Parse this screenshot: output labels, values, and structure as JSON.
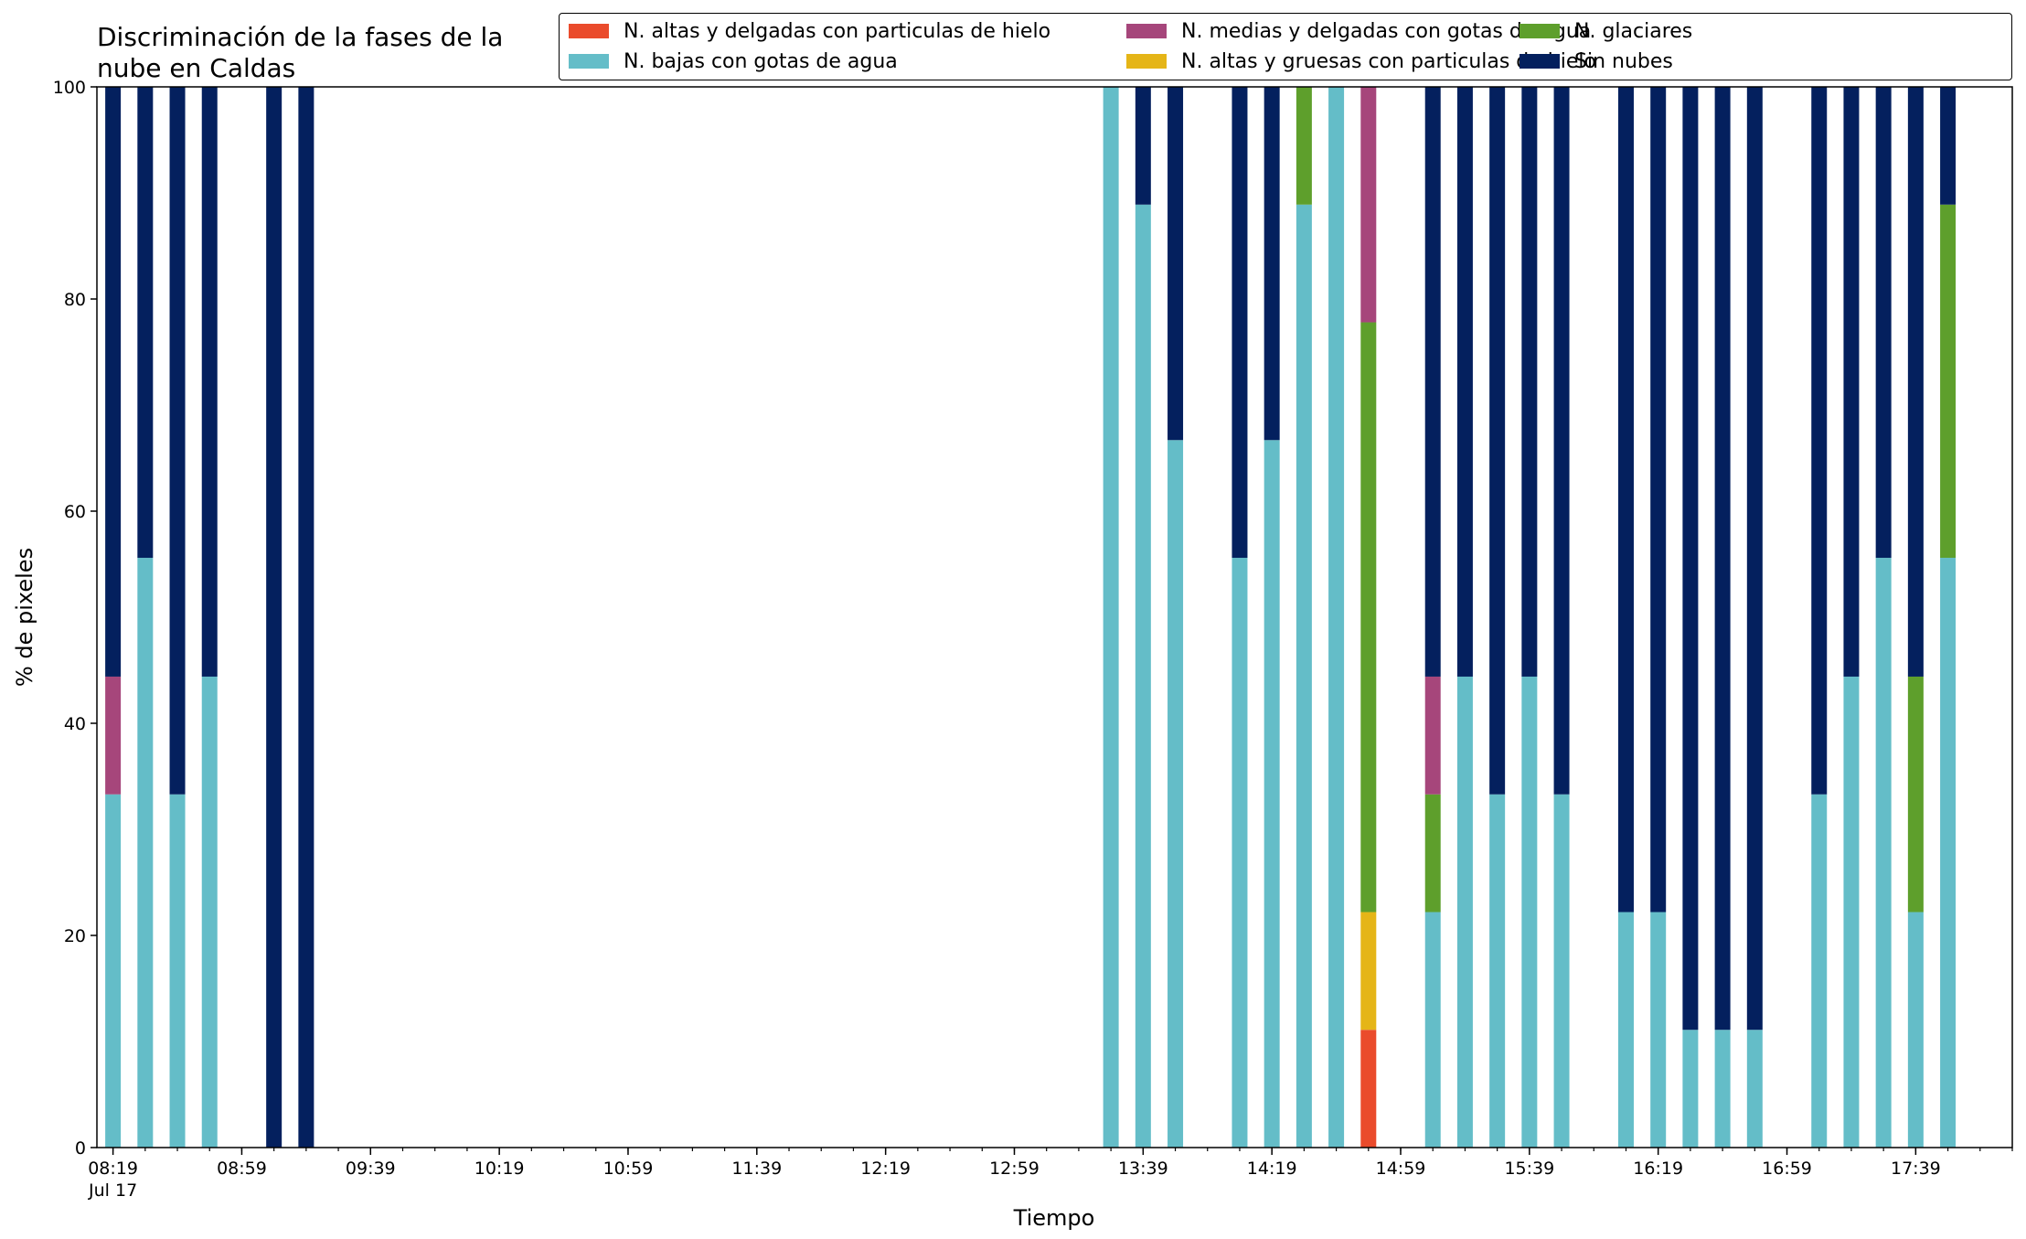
{
  "chart_data": {
    "type": "bar",
    "stacked": true,
    "title": "Discriminación de la fases de la\nnube en Caldas",
    "xlabel": "Tiempo",
    "ylabel": "% de pixeles",
    "ylim": [
      0,
      100
    ],
    "yticks": [
      0,
      20,
      40,
      60,
      80,
      100
    ],
    "xticks": [
      {
        "time": "08:19",
        "sub": "Jul 17"
      },
      {
        "time": "08:59"
      },
      {
        "time": "09:39"
      },
      {
        "time": "10:19"
      },
      {
        "time": "10:59"
      },
      {
        "time": "11:39"
      },
      {
        "time": "12:19"
      },
      {
        "time": "12:59"
      },
      {
        "time": "13:39"
      },
      {
        "time": "14:19"
      },
      {
        "time": "14:59"
      },
      {
        "time": "15:39"
      },
      {
        "time": "16:19"
      },
      {
        "time": "16:59"
      },
      {
        "time": "17:39"
      }
    ],
    "x_range": [
      "08:14",
      "18:09"
    ],
    "legend_position": "top-right",
    "series": [
      {
        "name": "N. altas y delgadas con particulas de hielo",
        "color": "#EA4B2C"
      },
      {
        "name": "N. altas y gruesas con particulas de hielo",
        "color": "#E5B517"
      },
      {
        "name": "N. bajas con gotas de agua",
        "color": "#64BDC8"
      },
      {
        "name": "N. glaciares",
        "color": "#5E9F2C"
      },
      {
        "name": "N. medias y delgadas con gotas de agua",
        "color": "#A6467B"
      },
      {
        "name": "Sin nubes",
        "color": "#04205E"
      }
    ],
    "legend_order": [
      0,
      2,
      4,
      1,
      3,
      5
    ],
    "bars": [
      {
        "time": "08:19",
        "values": [
          0,
          0,
          33.3,
          0,
          11.1,
          55.6
        ]
      },
      {
        "time": "08:29",
        "values": [
          0,
          0,
          55.6,
          0,
          0,
          44.4
        ]
      },
      {
        "time": "08:39",
        "values": [
          0,
          0,
          33.3,
          0,
          0,
          66.7
        ]
      },
      {
        "time": "08:49",
        "values": [
          0,
          0,
          44.4,
          0,
          0,
          55.6
        ]
      },
      {
        "time": "09:09",
        "values": [
          0,
          0,
          0,
          0,
          0,
          100
        ]
      },
      {
        "time": "09:19",
        "values": [
          0,
          0,
          0,
          0,
          0,
          100
        ]
      },
      {
        "time": "13:29",
        "values": [
          0,
          0,
          100,
          0,
          0,
          0
        ]
      },
      {
        "time": "13:39",
        "values": [
          0,
          0,
          88.9,
          0,
          0,
          11.1
        ]
      },
      {
        "time": "13:49",
        "values": [
          0,
          0,
          66.7,
          0,
          0,
          33.3
        ]
      },
      {
        "time": "14:09",
        "values": [
          0,
          0,
          55.6,
          0,
          0,
          44.4
        ]
      },
      {
        "time": "14:19",
        "values": [
          0,
          0,
          66.7,
          0,
          0,
          33.3
        ]
      },
      {
        "time": "14:29",
        "values": [
          0,
          0,
          88.9,
          11.1,
          0,
          0
        ]
      },
      {
        "time": "14:39",
        "values": [
          0,
          0,
          100,
          0,
          0,
          0
        ]
      },
      {
        "time": "14:49",
        "values": [
          11.1,
          11.1,
          0,
          55.6,
          22.2,
          0
        ]
      },
      {
        "time": "15:09",
        "values": [
          0,
          0,
          22.2,
          11.1,
          11.1,
          55.6
        ]
      },
      {
        "time": "15:19",
        "values": [
          0,
          0,
          44.4,
          0,
          0,
          55.6
        ]
      },
      {
        "time": "15:29",
        "values": [
          0,
          0,
          33.3,
          0,
          0,
          66.7
        ]
      },
      {
        "time": "15:39",
        "values": [
          0,
          0,
          44.4,
          0,
          0,
          55.6
        ]
      },
      {
        "time": "15:49",
        "values": [
          0,
          0,
          33.3,
          0,
          0,
          66.7
        ]
      },
      {
        "time": "16:09",
        "values": [
          0,
          0,
          22.2,
          0,
          0,
          77.8
        ]
      },
      {
        "time": "16:19",
        "values": [
          0,
          0,
          22.2,
          0,
          0,
          77.8
        ]
      },
      {
        "time": "16:29",
        "values": [
          0,
          0,
          11.1,
          0,
          0,
          88.9
        ]
      },
      {
        "time": "16:39",
        "values": [
          0,
          0,
          11.1,
          0,
          0,
          88.9
        ]
      },
      {
        "time": "16:49",
        "values": [
          0,
          0,
          11.1,
          0,
          0,
          88.9
        ]
      },
      {
        "time": "17:09",
        "values": [
          0,
          0,
          33.3,
          0,
          0,
          66.7
        ]
      },
      {
        "time": "17:19",
        "values": [
          0,
          0,
          44.4,
          0,
          0,
          55.6
        ]
      },
      {
        "time": "17:29",
        "values": [
          0,
          0,
          55.6,
          0,
          0,
          44.4
        ]
      },
      {
        "time": "17:39",
        "values": [
          0,
          0,
          22.2,
          22.2,
          0,
          55.6
        ]
      },
      {
        "time": "17:49",
        "values": [
          0,
          0,
          55.6,
          33.3,
          0,
          11.1
        ]
      }
    ]
  }
}
